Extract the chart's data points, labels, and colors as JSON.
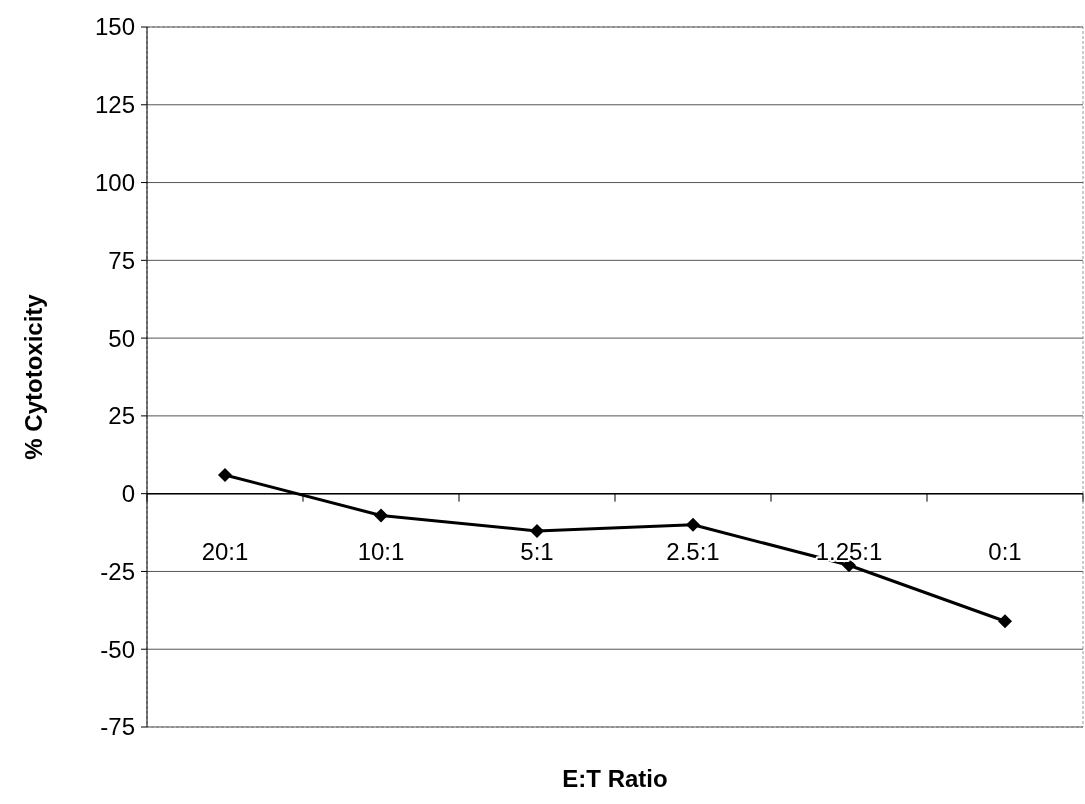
{
  "chart_data": {
    "type": "line",
    "xlabel": "E:T Ratio",
    "ylabel": "% Cytotoxicity",
    "categories": [
      "20:1",
      "10:1",
      "5:1",
      "2.5:1",
      "1.25:1",
      "0:1"
    ],
    "series": [
      {
        "color": "#000000",
        "values": [
          6,
          -7,
          -12,
          -10,
          -23,
          -41
        ]
      }
    ],
    "ylim": [
      -75,
      150
    ],
    "yticks": [
      -75,
      -50,
      -25,
      0,
      25,
      50,
      75,
      100,
      125,
      150
    ],
    "grid": "y",
    "marker": "diamond",
    "line_style": "solid"
  }
}
